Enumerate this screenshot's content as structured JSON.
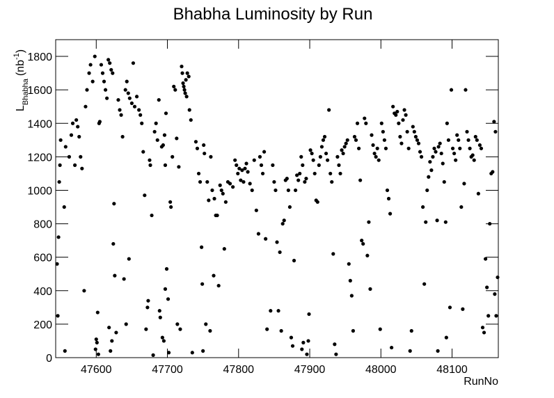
{
  "chart_data": {
    "type": "scatter",
    "title": "Bhabha Luminosity by Run",
    "x_label": "RunNo",
    "y_label": {
      "main": "L",
      "sub": "Bhabha",
      "unit": "(nb",
      "sup": "-1",
      "close": ")"
    },
    "color": "#000000",
    "xlim": [
      47543,
      48165
    ],
    "xticks": [
      47600,
      47700,
      47800,
      47900,
      48000,
      48100
    ],
    "ylim": [
      0,
      1900
    ],
    "yticks": [
      0,
      200,
      400,
      600,
      800,
      1000,
      1200,
      1400,
      1600,
      1800
    ],
    "x": [
      47545,
      47546,
      47548,
      47549,
      47550,
      47547,
      47555,
      47556,
      47557,
      47562,
      47565,
      47567,
      47570,
      47572,
      47574,
      47576,
      47578,
      47580,
      47583,
      47585,
      47587,
      47590,
      47592,
      47595,
      47598,
      47600,
      47601,
      47599,
      47602,
      47603,
      47604,
      47605,
      47607,
      47609,
      47611,
      47613,
      47615,
      47617,
      47619,
      47621,
      47623,
      47618,
      47620,
      47622,
      47624,
      47625,
      47626,
      47628,
      47631,
      47633,
      47635,
      47637,
      47639,
      47641,
      47643,
      47645,
      47647,
      47642,
      47646,
      47650,
      47652,
      47654,
      47657,
      47660,
      47662,
      47664,
      47666,
      47668,
      47670,
      47672,
      47673,
      47675,
      47676,
      47678,
      47680,
      47682,
      47684,
      47686,
      47688,
      47689,
      47690,
      47692,
      47694,
      47696,
      47693,
      47695,
      47697,
      47699,
      47698,
      47697,
      47701,
      47702,
      47704,
      47705,
      47707,
      47709,
      47711,
      47713,
      47714,
      47716,
      47718,
      47720,
      47721,
      47722,
      47723,
      47724,
      47725,
      47726,
      47727,
      47728,
      47730,
      47731,
      47733,
      47735,
      47740,
      47742,
      47744,
      47746,
      47748,
      47749,
      47750,
      47751,
      47752,
      47754,
      47756,
      47758,
      47760,
      47761,
      47763,
      47765,
      47766,
      47768,
      47770,
      47772,
      47774,
      47776,
      47778,
      47780,
      47782,
      47785,
      47788,
      47792,
      47795,
      47797,
      47799,
      47801,
      47803,
      47805,
      47807,
      47809,
      47811,
      47813,
      47816,
      47819,
      47822,
      47825,
      47828,
      47830,
      47832,
      47834,
      47836,
      47838,
      47840,
      47845,
      47848,
      47850,
      47852,
      47854,
      47856,
      47858,
      47860,
      47862,
      47864,
      47866,
      47868,
      47870,
      47872,
      47874,
      47876,
      47878,
      47880,
      47882,
      47884,
      47886,
      47888,
      47890,
      47889,
      47891,
      47893,
      47895,
      47896,
      47898,
      47899,
      47901,
      47903,
      47905,
      47907,
      47909,
      47911,
      47913,
      47915,
      47917,
      47919,
      47921,
      47923,
      47925,
      47927,
      47929,
      47931,
      47933,
      47935,
      47937,
      47939,
      47941,
      47943,
      47945,
      47947,
      47949,
      47951,
      47953,
      47955,
      47957,
      47959,
      47961,
      47963,
      47965,
      47967,
      47969,
      47971,
      47973,
      47975,
      47977,
      47979,
      47981,
      47983,
      47985,
      47987,
      47989,
      47991,
      47993,
      47995,
      47997,
      47999,
      48001,
      48003,
      48005,
      48007,
      48009,
      48011,
      48013,
      48015,
      48017,
      48019,
      48021,
      48023,
      48025,
      48027,
      48029,
      48031,
      48033,
      48035,
      48037,
      48039,
      48041,
      48043,
      48045,
      48047,
      48049,
      48051,
      48053,
      48055,
      48057,
      48059,
      48061,
      48063,
      48065,
      48067,
      48069,
      48071,
      48073,
      48075,
      48077,
      48079,
      48081,
      48083,
      48085,
      48087,
      48089,
      48091,
      48093,
      48095,
      48080,
      48092,
      48097,
      48099,
      48101,
      48103,
      48105,
      48107,
      48109,
      48111,
      48113,
      48115,
      48117,
      48119,
      48121,
      48123,
      48125,
      48127,
      48129,
      48131,
      48133,
      48135,
      48137,
      48139,
      48141,
      48143,
      48145,
      48147,
      48149,
      48151,
      48153,
      48155,
      48157,
      48159,
      48161,
      48162,
      48160,
      48164
    ],
    "values": [
      560,
      250,
      1050,
      1150,
      1300,
      720,
      900,
      40,
      1260,
      1200,
      1330,
      1400,
      1150,
      1420,
      1380,
      1320,
      1200,
      1130,
      400,
      1500,
      1600,
      1700,
      1750,
      1650,
      1800,
      110,
      90,
      50,
      270,
      20,
      1400,
      1410,
      1750,
      1700,
      1650,
      1600,
      1550,
      1780,
      1760,
      1720,
      1700,
      180,
      40,
      100,
      680,
      920,
      490,
      150,
      1540,
      1480,
      1450,
      1320,
      470,
      1600,
      1650,
      1580,
      1550,
      200,
      590,
      1520,
      1760,
      1500,
      1560,
      1480,
      1450,
      1400,
      1230,
      970,
      170,
      300,
      340,
      1180,
      1150,
      850,
      15,
      1350,
      1400,
      1300,
      1540,
      280,
      240,
      1260,
      1270,
      1330,
      120,
      100,
      410,
      530,
      1460,
      1150,
      350,
      30,
      930,
      900,
      1200,
      1620,
      1600,
      1310,
      200,
      1140,
      170,
      1740,
      1700,
      1640,
      1620,
      1600,
      1580,
      1660,
      1560,
      1700,
      1680,
      1480,
      1420,
      30,
      1290,
      1250,
      1100,
      1050,
      660,
      440,
      40,
      1270,
      1220,
      200,
      1050,
      940,
      160,
      1200,
      1000,
      490,
      950,
      850,
      850,
      430,
      1030,
      1000,
      980,
      650,
      930,
      1050,
      1040,
      1020,
      1180,
      1150,
      1100,
      1130,
      1060,
      1120,
      1050,
      1130,
      1160,
      1110,
      1040,
      1000,
      1180,
      880,
      740,
      1200,
      1150,
      1100,
      1230,
      710,
      170,
      280,
      1150,
      1050,
      1000,
      690,
      280,
      630,
      160,
      800,
      820,
      1060,
      1070,
      1000,
      900,
      120,
      70,
      580,
      1000,
      1090,
      1060,
      1100,
      1200,
      1150,
      50,
      90,
      1050,
      1070,
      20,
      100,
      260,
      1240,
      1220,
      1180,
      1100,
      940,
      930,
      1150,
      1200,
      1260,
      1300,
      1320,
      1220,
      1180,
      1480,
      1100,
      1050,
      620,
      80,
      20,
      1200,
      1150,
      1100,
      1240,
      1220,
      1260,
      1280,
      1300,
      560,
      460,
      370,
      160,
      1320,
      1300,
      1400,
      1250,
      1060,
      700,
      680,
      1430,
      1400,
      610,
      810,
      410,
      1330,
      1270,
      1220,
      1200,
      1250,
      1180,
      170,
      1400,
      1350,
      1300,
      1250,
      1000,
      950,
      860,
      60,
      1500,
      1460,
      1450,
      1470,
      1400,
      1320,
      1280,
      1420,
      1480,
      1450,
      1350,
      1250,
      40,
      160,
      1380,
      1350,
      1320,
      1300,
      1280,
      1230,
      1200,
      900,
      440,
      810,
      1000,
      1080,
      1170,
      1120,
      1200,
      1250,
      1230,
      820,
      1260,
      1280,
      1220,
      1160,
      1050,
      810,
      1400,
      1300,
      40,
      120,
      300,
      1600,
      1250,
      1220,
      1180,
      1330,
      1300,
      1250,
      900,
      290,
      1040,
      1600,
      1350,
      1300,
      1250,
      1200,
      1210,
      1180,
      1320,
      1300,
      980,
      1270,
      1250,
      180,
      150,
      590,
      420,
      250,
      800,
      1100,
      1110,
      1410,
      1350,
      250,
      380,
      480
    ]
  }
}
